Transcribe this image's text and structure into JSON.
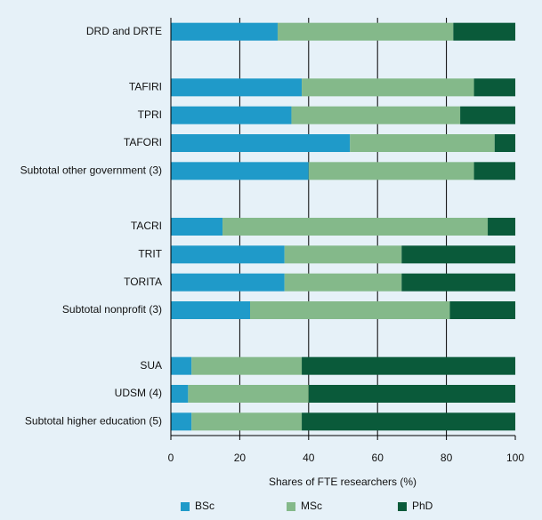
{
  "chart_data": {
    "type": "stacked_barh",
    "xlabel": "Shares of FTE researchers (%)",
    "categories": [
      "DRD and DRTE",
      null,
      "TAFIRI",
      "TPRI",
      "TAFORI",
      "Subtotal other government (3)",
      null,
      "TACRI",
      "TRIT",
      "TORITA",
      "Subtotal nonprofit (3)",
      null,
      "SUA",
      "UDSM  (4)",
      "Subtotal higher education (5)"
    ],
    "series": [
      {
        "name": "BSc",
        "color": "#1f9ac9",
        "values": [
          31,
          null,
          38,
          35,
          52,
          40,
          null,
          15,
          33,
          33,
          23,
          null,
          6,
          5,
          6
        ]
      },
      {
        "name": "MSc",
        "color": "#84b98a",
        "values": [
          51,
          null,
          50,
          49,
          42,
          48,
          null,
          77,
          34,
          34,
          58,
          null,
          32,
          35,
          32
        ]
      },
      {
        "name": "PhD",
        "color": "#0a5a3a",
        "values": [
          18,
          null,
          12,
          16,
          6,
          12,
          null,
          8,
          33,
          33,
          19,
          null,
          62,
          60,
          62
        ]
      }
    ],
    "xlim": [
      0,
      100
    ],
    "xticks": [
      0,
      20,
      40,
      60,
      80,
      100
    ],
    "grid": true,
    "legend": "bottom"
  }
}
